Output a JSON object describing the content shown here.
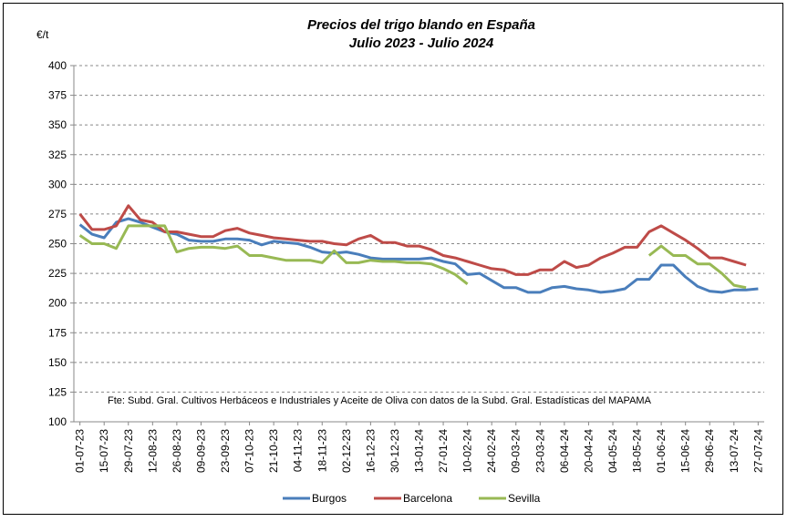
{
  "chart_data": {
    "type": "line",
    "title": "Precios del trigo blando en España",
    "subtitle": "Julio 2023 - Julio 2024",
    "y_label": "€/t",
    "annotation": "Fte: Subd. Gral. Cultivos Herbáceos e Industriales y Aceite de Oliva  con datos de la Subd. Gral. Estadísticas del MAPAMA",
    "categories": [
      "01-07-23",
      null,
      "15-07-23",
      null,
      "29-07-23",
      null,
      "12-08-23",
      null,
      "26-08-23",
      null,
      "09-09-23",
      null,
      "23-09-23",
      null,
      "07-10-23",
      null,
      "21-10-23",
      null,
      "04-11-23",
      null,
      "18-11-23",
      null,
      "02-12-23",
      null,
      "16-12-23",
      null,
      "30-12-23",
      null,
      "13-01-24",
      null,
      "27-01-24",
      null,
      "10-02-24",
      null,
      "24-02-24",
      null,
      "09-03-24",
      null,
      "23-03-24",
      null,
      "06-04-24",
      null,
      "20-04-24",
      null,
      "04-05-24",
      null,
      "18-05-24",
      null,
      "01-06-24",
      null,
      "15-06-24",
      null,
      "29-06-24",
      null,
      "13-07-24",
      null,
      "27-07-24"
    ],
    "series": [
      {
        "name": "Burgos",
        "color": "#4a7ebb",
        "values": [
          266,
          258,
          255,
          268,
          271,
          268,
          264,
          260,
          258,
          253,
          252,
          252,
          254,
          254,
          253,
          249,
          252,
          251,
          250,
          247,
          243,
          242,
          243,
          241,
          238,
          237,
          237,
          237,
          237,
          238,
          235,
          233,
          224,
          225,
          219,
          213,
          213,
          209,
          209,
          213,
          214,
          212,
          211,
          209,
          210,
          212,
          220,
          220,
          232,
          232,
          222,
          214,
          210,
          209,
          211,
          211,
          212
        ]
      },
      {
        "name": "Barcelona",
        "color": "#be4b48",
        "values": [
          275,
          262,
          262,
          265,
          282,
          270,
          268,
          260,
          260,
          258,
          256,
          256,
          261,
          263,
          259,
          257,
          255,
          254,
          253,
          252,
          252,
          250,
          249,
          254,
          257,
          251,
          251,
          248,
          248,
          245,
          240,
          238,
          235,
          232,
          229,
          228,
          224,
          224,
          228,
          228,
          235,
          230,
          232,
          238,
          242,
          247,
          247,
          260,
          265,
          259,
          253,
          246,
          238,
          238,
          235,
          232,
          null
        ]
      },
      {
        "name": "Sevilla",
        "color": "#98b954",
        "values": [
          257,
          250,
          250,
          246,
          265,
          265,
          265,
          265,
          243,
          246,
          247,
          247,
          246,
          248,
          240,
          240,
          238,
          236,
          236,
          236,
          234,
          244,
          234,
          234,
          236,
          235,
          235,
          234,
          234,
          233,
          229,
          224,
          216,
          null,
          null,
          null,
          null,
          null,
          null,
          null,
          null,
          null,
          null,
          null,
          null,
          null,
          null,
          240,
          248,
          240,
          240,
          233,
          233,
          225,
          215,
          213,
          null
        ]
      }
    ],
    "ylim": [
      100,
      400
    ],
    "yticks": [
      100,
      125,
      150,
      175,
      200,
      225,
      250,
      275,
      300,
      325,
      350,
      375,
      400
    ],
    "grid": true,
    "legend": "bottom"
  }
}
